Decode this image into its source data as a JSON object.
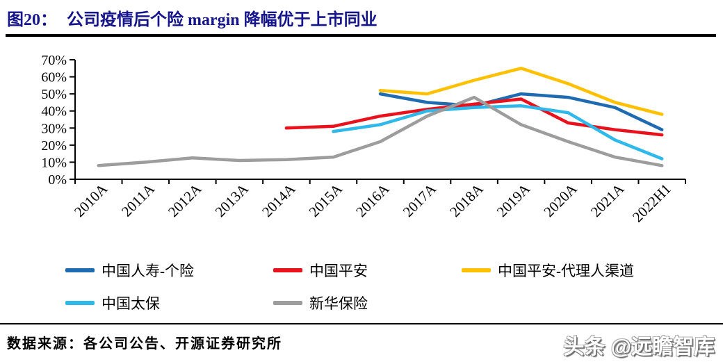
{
  "page": {
    "figure_label": "图20：",
    "title": "公司疫情后个险 margin 降幅优于上市同业",
    "title_color": "#14148c",
    "source_text": "数据来源：各公司公告、开源证券研究所",
    "watermark": "头条 @远瞻智库"
  },
  "chart_data": {
    "type": "line",
    "title": "公司疫情后个险 margin 降幅优于上市同业",
    "categories": [
      "2010A",
      "2011A",
      "2012A",
      "2013A",
      "2014A",
      "2015A",
      "2016A",
      "2017A",
      "2018A",
      "2019A",
      "2020A",
      "2021A",
      "2022H1"
    ],
    "ylim": [
      0,
      70
    ],
    "ytick_step": 10,
    "ytick_labels": [
      "0%",
      "10%",
      "20%",
      "30%",
      "40%",
      "50%",
      "60%",
      "70%"
    ],
    "grid": false,
    "legend_position": "bottom",
    "axis_color": "#000000",
    "series": [
      {
        "name": "中国人寿-个险",
        "color": "#1e6bb2",
        "values": [
          null,
          null,
          null,
          null,
          null,
          null,
          50,
          45,
          43,
          50,
          48,
          42,
          29
        ]
      },
      {
        "name": "中国平安",
        "color": "#e8111c",
        "values": [
          null,
          null,
          null,
          null,
          30,
          31,
          37,
          41,
          44,
          47,
          33,
          29,
          26
        ]
      },
      {
        "name": "中国平安-代理人渠道",
        "color": "#ffc000",
        "values": [
          null,
          null,
          null,
          null,
          null,
          null,
          52,
          50,
          58,
          65,
          56,
          45,
          38
        ]
      },
      {
        "name": "中国太保",
        "color": "#2eb9ea",
        "values": [
          null,
          null,
          null,
          null,
          null,
          28,
          32,
          40,
          42,
          43,
          39,
          23,
          12
        ]
      },
      {
        "name": "新华保险",
        "color": "#9d9d9d",
        "values": [
          8,
          10,
          12.5,
          11,
          11.5,
          13,
          22,
          37,
          48,
          32,
          22,
          13,
          8
        ]
      }
    ]
  }
}
